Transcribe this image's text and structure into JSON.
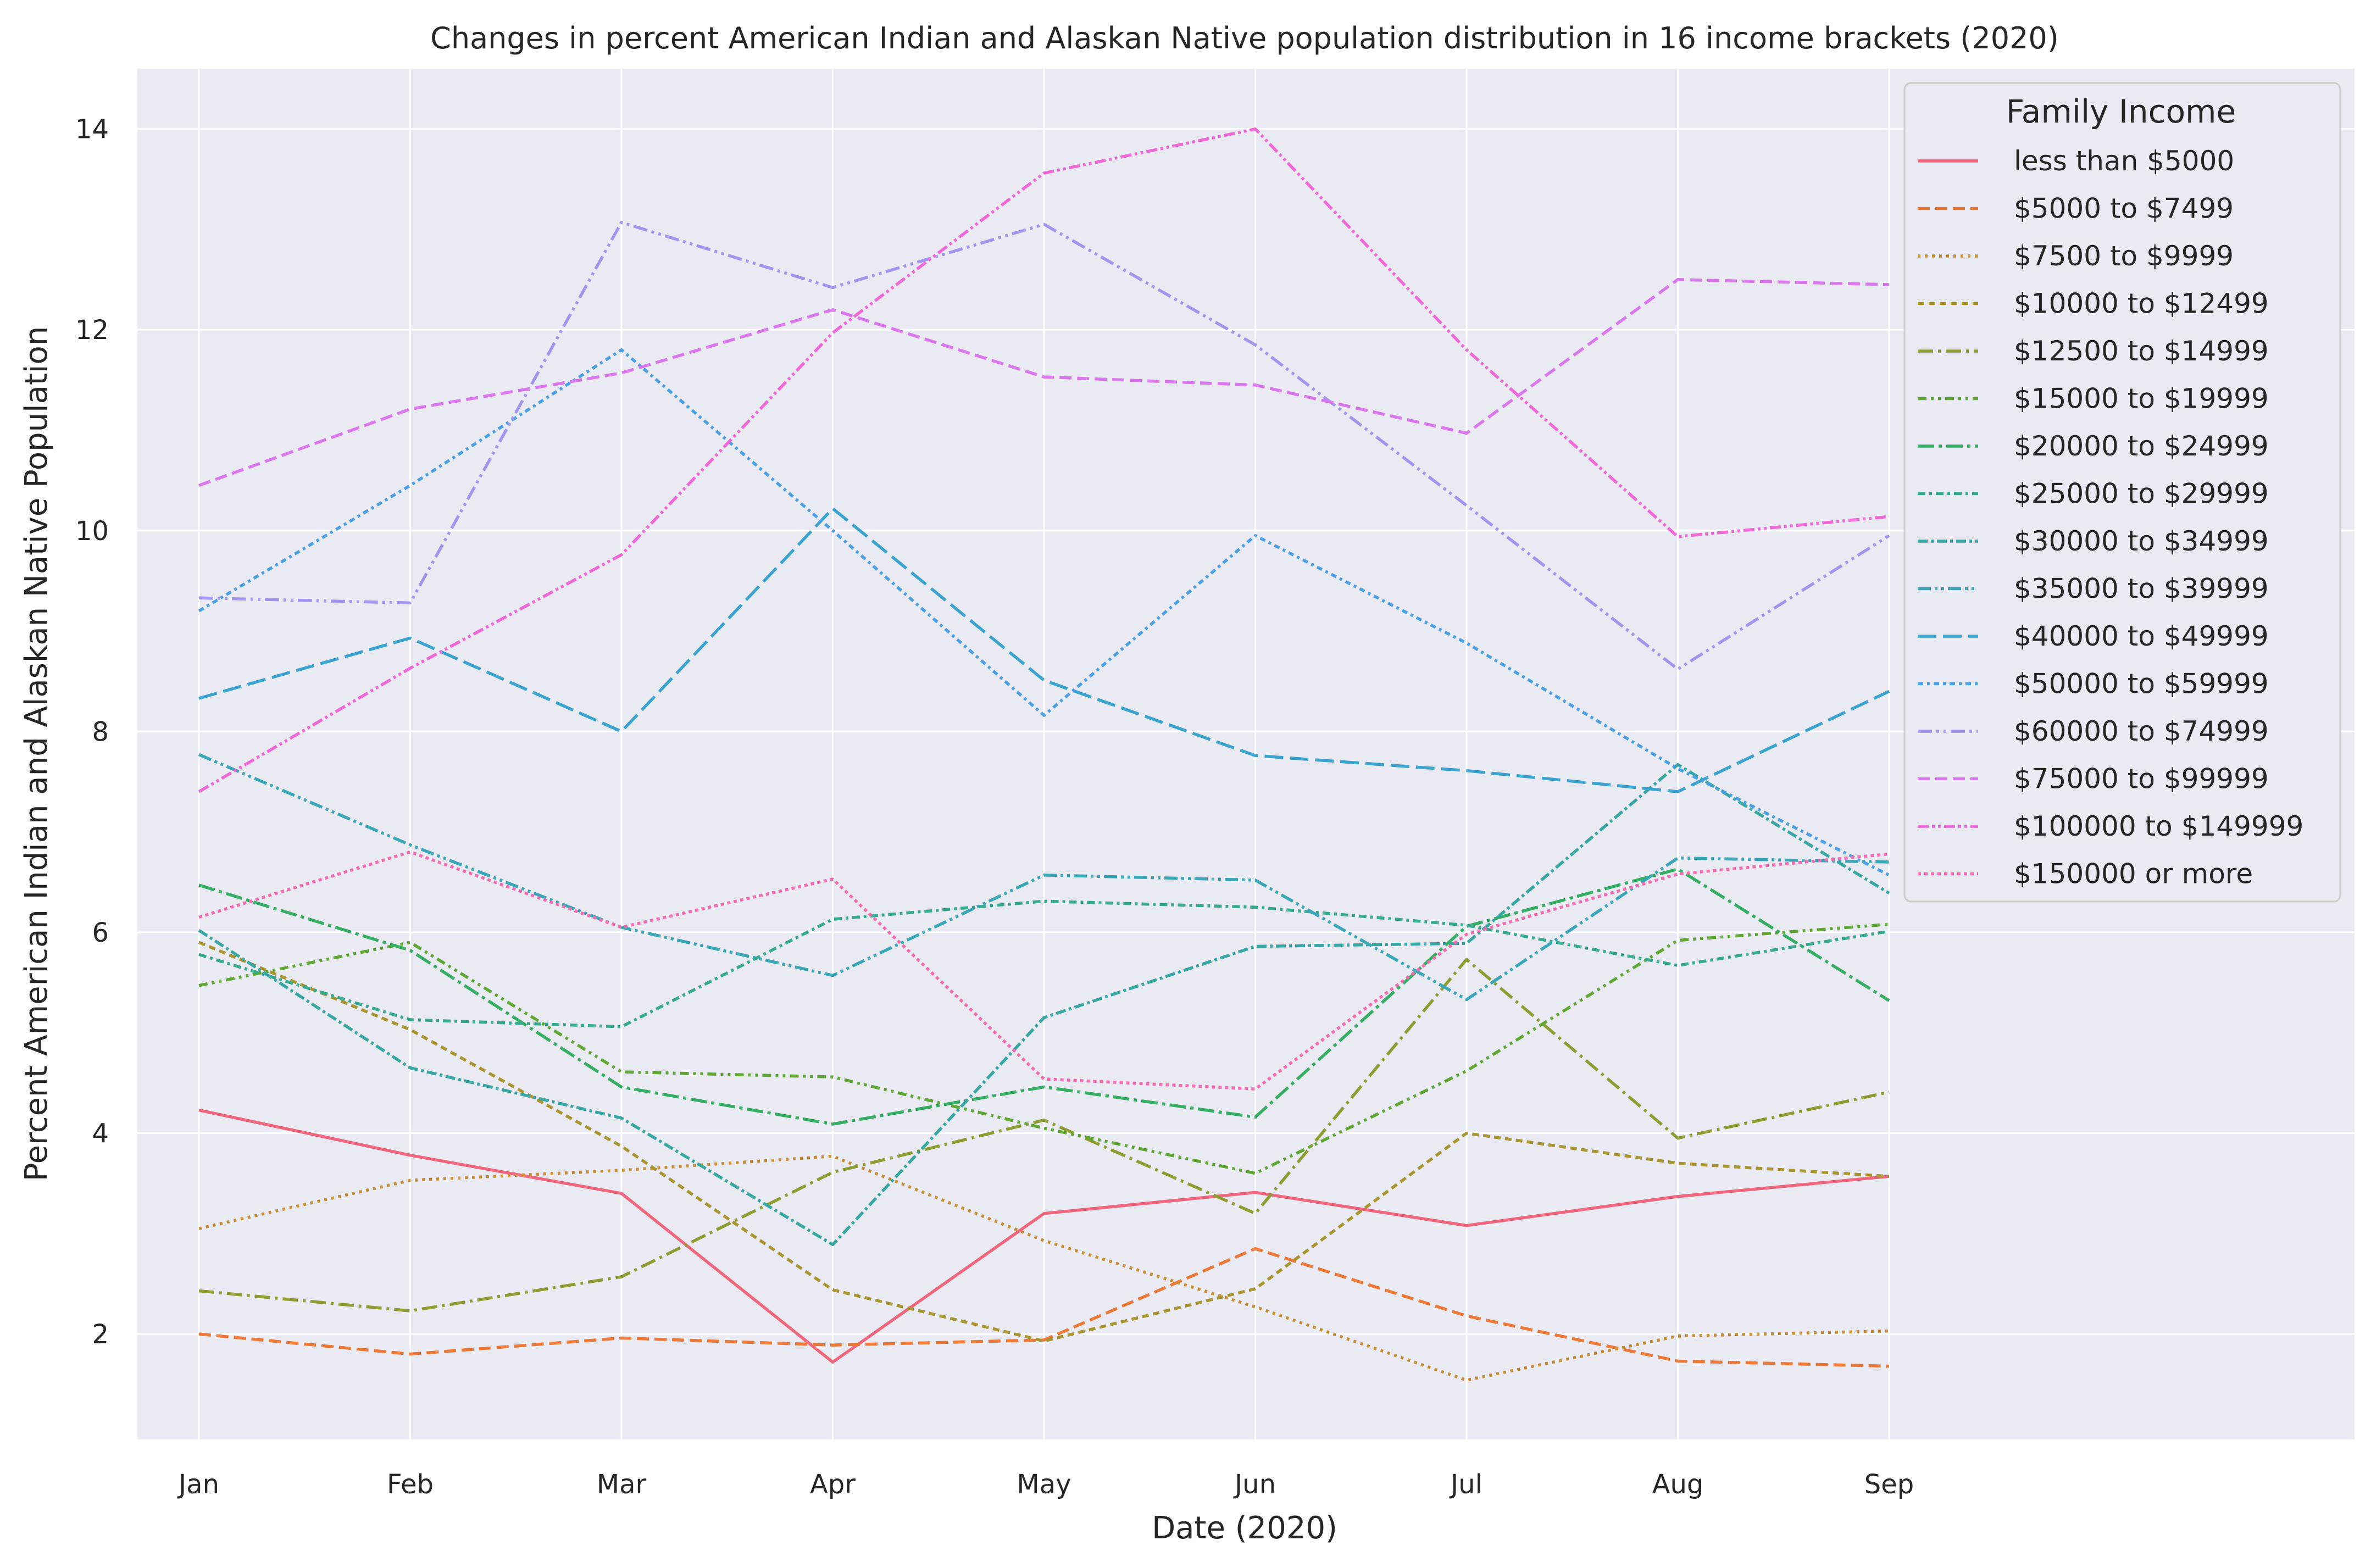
{
  "chart_data": {
    "type": "line",
    "title": "Changes in percent American Indian and Alaskan Native population distribution in 16 income brackets (2020)",
    "xlabel": "Date (2020)",
    "ylabel": "Percent American Indian and Alaskan Native Population",
    "categories": [
      "Jan",
      "Feb",
      "Mar",
      "Apr",
      "May",
      "Jun",
      "Jul",
      "Aug",
      "Sep"
    ],
    "yticks": [
      "2",
      "4",
      "6",
      "8",
      "10",
      "12",
      "14"
    ],
    "ylim": [
      0.95,
      14.6
    ],
    "grid": true,
    "legend": {
      "title": "Family Income",
      "placement": "top-right"
    },
    "series": [
      {
        "name": "less than $5000",
        "color": "#f0677d",
        "dash": "solid",
        "values": [
          4.23,
          3.78,
          3.4,
          1.72,
          3.2,
          3.41,
          3.08,
          3.37,
          3.57
        ]
      },
      {
        "name": "$5000 to $7499",
        "color": "#ee7937",
        "dash": "dashed",
        "values": [
          2.0,
          1.8,
          1.96,
          1.89,
          1.94,
          2.85,
          2.18,
          1.73,
          1.68
        ]
      },
      {
        "name": "$7500 to $9999",
        "color": "#c88d30",
        "dash": "dotted",
        "values": [
          3.05,
          3.53,
          3.63,
          3.77,
          2.93,
          2.27,
          1.54,
          1.98,
          2.03
        ]
      },
      {
        "name": "$10000 to $12499",
        "color": "#a99530",
        "dash": "dash-short",
        "values": [
          5.9,
          5.03,
          3.87,
          2.44,
          1.93,
          2.45,
          4.0,
          3.7,
          3.57
        ]
      },
      {
        "name": "$12500 to $14999",
        "color": "#8e9d31",
        "dash": "dashdot",
        "values": [
          2.43,
          2.23,
          2.57,
          3.61,
          4.13,
          3.2,
          5.73,
          3.95,
          4.41
        ]
      },
      {
        "name": "$15000 to $19999",
        "color": "#5fa733",
        "dash": "dashdotdot",
        "values": [
          5.47,
          5.9,
          4.61,
          4.56,
          4.05,
          3.6,
          4.62,
          5.92,
          6.08
        ]
      },
      {
        "name": "$20000 to $24999",
        "color": "#33ae62",
        "dash": "dashdot-long",
        "values": [
          6.47,
          5.82,
          4.46,
          4.09,
          4.46,
          4.16,
          6.06,
          6.63,
          5.32
        ]
      },
      {
        "name": "$25000 to $29999",
        "color": "#35aa8e",
        "dash": "dash-dot-short",
        "values": [
          5.78,
          5.13,
          5.06,
          6.13,
          6.31,
          6.25,
          6.07,
          5.67,
          6.01
        ]
      },
      {
        "name": "$30000 to $34999",
        "color": "#36a7a2",
        "dash": "dashdot-tight",
        "values": [
          6.02,
          4.65,
          4.15,
          2.89,
          5.15,
          5.86,
          5.89,
          7.67,
          6.39
        ]
      },
      {
        "name": "$35000 to $39999",
        "color": "#38a7b8",
        "dash": "dashdotdot-long",
        "values": [
          7.77,
          6.87,
          6.05,
          5.57,
          6.57,
          6.52,
          5.33,
          6.74,
          6.7
        ]
      },
      {
        "name": "$40000 to $49999",
        "color": "#3aa3d0",
        "dash": "long-dash",
        "values": [
          8.33,
          8.93,
          8.0,
          10.22,
          8.51,
          7.76,
          7.61,
          7.4,
          8.4
        ]
      },
      {
        "name": "$50000 to $59999",
        "color": "#4aa0e4",
        "dash": "dashdot-alt",
        "values": [
          9.2,
          10.45,
          11.8,
          10.0,
          8.16,
          9.95,
          8.88,
          7.63,
          6.57
        ]
      },
      {
        "name": "$60000 to $74999",
        "color": "#a196ef",
        "dash": "dashdotdot-alt",
        "values": [
          9.33,
          9.28,
          13.07,
          12.42,
          13.05,
          11.85,
          10.25,
          8.62,
          9.95
        ]
      },
      {
        "name": "$75000 to $99999",
        "color": "#da77ee",
        "dash": "dashed",
        "values": [
          10.45,
          11.21,
          11.57,
          12.2,
          11.53,
          11.45,
          10.97,
          12.5,
          12.45
        ]
      },
      {
        "name": "$100000 to $149999",
        "color": "#f067d8",
        "dash": "dashdotdot-tight",
        "values": [
          7.4,
          8.63,
          9.76,
          11.97,
          13.56,
          14.0,
          11.8,
          9.94,
          10.14
        ]
      },
      {
        "name": "$150000 or more",
        "color": "#f56bb0",
        "dash": "dotted-dense",
        "values": [
          6.15,
          6.8,
          6.05,
          6.53,
          4.54,
          4.44,
          5.98,
          6.58,
          6.78
        ]
      }
    ]
  }
}
